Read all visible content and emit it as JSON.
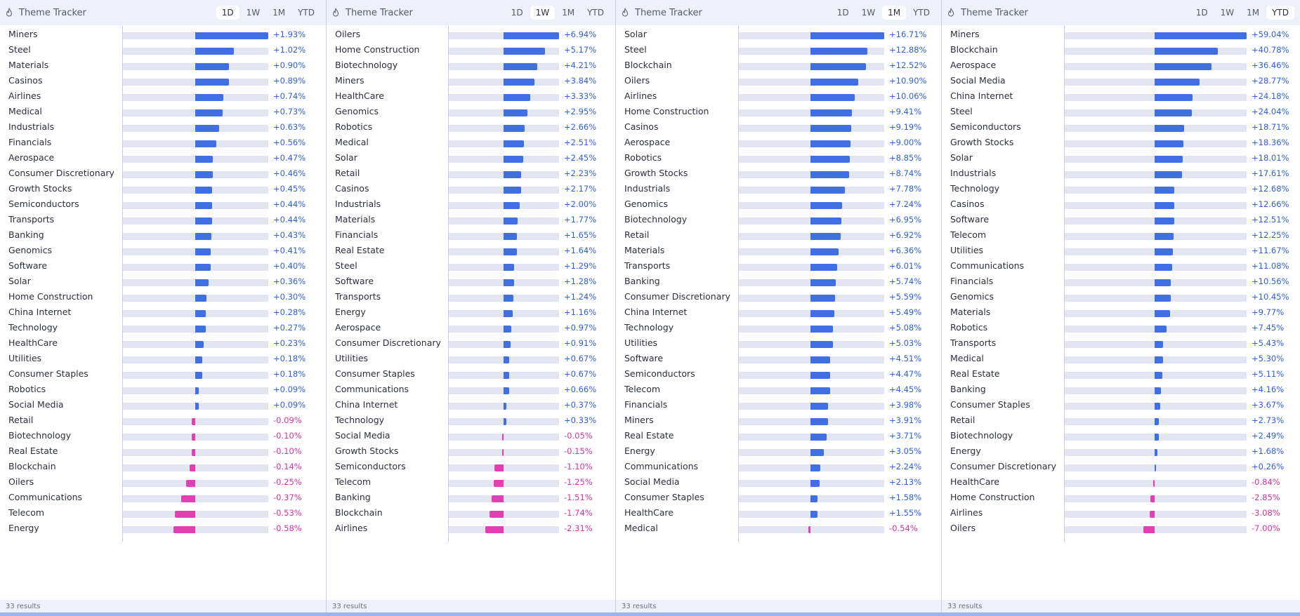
{
  "panels": [
    {
      "title": "Theme Tracker",
      "tabs": [
        "1D",
        "1W",
        "1M",
        "YTD"
      ],
      "active_tab": "1D",
      "max_abs": 1.93,
      "footer": "33 results",
      "rows": [
        {
          "label": "Miners",
          "value": 1.93,
          "text": "+1.93%"
        },
        {
          "label": "Steel",
          "value": 1.02,
          "text": "+1.02%"
        },
        {
          "label": "Materials",
          "value": 0.9,
          "text": "+0.90%"
        },
        {
          "label": "Casinos",
          "value": 0.89,
          "text": "+0.89%"
        },
        {
          "label": "Airlines",
          "value": 0.74,
          "text": "+0.74%"
        },
        {
          "label": "Medical",
          "value": 0.73,
          "text": "+0.73%"
        },
        {
          "label": "Industrials",
          "value": 0.63,
          "text": "+0.63%"
        },
        {
          "label": "Financials",
          "value": 0.56,
          "text": "+0.56%"
        },
        {
          "label": "Aerospace",
          "value": 0.47,
          "text": "+0.47%"
        },
        {
          "label": "Consumer Discretionary",
          "value": 0.46,
          "text": "+0.46%"
        },
        {
          "label": "Growth Stocks",
          "value": 0.45,
          "text": "+0.45%"
        },
        {
          "label": "Semiconductors",
          "value": 0.44,
          "text": "+0.44%"
        },
        {
          "label": "Transports",
          "value": 0.44,
          "text": "+0.44%"
        },
        {
          "label": "Banking",
          "value": 0.43,
          "text": "+0.43%"
        },
        {
          "label": "Genomics",
          "value": 0.41,
          "text": "+0.41%"
        },
        {
          "label": "Software",
          "value": 0.4,
          "text": "+0.40%"
        },
        {
          "label": "Solar",
          "value": 0.36,
          "text": "+0.36%"
        },
        {
          "label": "Home Construction",
          "value": 0.3,
          "text": "+0.30%"
        },
        {
          "label": "China Internet",
          "value": 0.28,
          "text": "+0.28%"
        },
        {
          "label": "Technology",
          "value": 0.27,
          "text": "+0.27%"
        },
        {
          "label": "HealthCare",
          "value": 0.23,
          "text": "+0.23%"
        },
        {
          "label": "Utilities",
          "value": 0.18,
          "text": "+0.18%"
        },
        {
          "label": "Consumer Staples",
          "value": 0.18,
          "text": "+0.18%"
        },
        {
          "label": "Robotics",
          "value": 0.09,
          "text": "+0.09%"
        },
        {
          "label": "Social Media",
          "value": 0.09,
          "text": "+0.09%"
        },
        {
          "label": "Retail",
          "value": -0.09,
          "text": "-0.09%"
        },
        {
          "label": "Biotechnology",
          "value": -0.1,
          "text": "-0.10%"
        },
        {
          "label": "Real Estate",
          "value": -0.1,
          "text": "-0.10%"
        },
        {
          "label": "Blockchain",
          "value": -0.14,
          "text": "-0.14%"
        },
        {
          "label": "Oilers",
          "value": -0.25,
          "text": "-0.25%"
        },
        {
          "label": "Communications",
          "value": -0.37,
          "text": "-0.37%"
        },
        {
          "label": "Telecom",
          "value": -0.53,
          "text": "-0.53%"
        },
        {
          "label": "Energy",
          "value": -0.58,
          "text": "-0.58%"
        }
      ]
    },
    {
      "title": "Theme Tracker",
      "tabs": [
        "1D",
        "1W",
        "1M",
        "YTD"
      ],
      "active_tab": "1W",
      "max_abs": 6.94,
      "footer": "33 results",
      "rows": [
        {
          "label": "Oilers",
          "value": 6.94,
          "text": "+6.94%"
        },
        {
          "label": "Home Construction",
          "value": 5.17,
          "text": "+5.17%"
        },
        {
          "label": "Biotechnology",
          "value": 4.21,
          "text": "+4.21%"
        },
        {
          "label": "Miners",
          "value": 3.84,
          "text": "+3.84%"
        },
        {
          "label": "HealthCare",
          "value": 3.33,
          "text": "+3.33%"
        },
        {
          "label": "Genomics",
          "value": 2.95,
          "text": "+2.95%"
        },
        {
          "label": "Robotics",
          "value": 2.66,
          "text": "+2.66%"
        },
        {
          "label": "Medical",
          "value": 2.51,
          "text": "+2.51%"
        },
        {
          "label": "Solar",
          "value": 2.45,
          "text": "+2.45%"
        },
        {
          "label": "Retail",
          "value": 2.23,
          "text": "+2.23%"
        },
        {
          "label": "Casinos",
          "value": 2.17,
          "text": "+2.17%"
        },
        {
          "label": "Industrials",
          "value": 2.0,
          "text": "+2.00%"
        },
        {
          "label": "Materials",
          "value": 1.77,
          "text": "+1.77%"
        },
        {
          "label": "Financials",
          "value": 1.65,
          "text": "+1.65%"
        },
        {
          "label": "Real Estate",
          "value": 1.64,
          "text": "+1.64%"
        },
        {
          "label": "Steel",
          "value": 1.29,
          "text": "+1.29%"
        },
        {
          "label": "Software",
          "value": 1.28,
          "text": "+1.28%"
        },
        {
          "label": "Transports",
          "value": 1.24,
          "text": "+1.24%"
        },
        {
          "label": "Energy",
          "value": 1.16,
          "text": "+1.16%"
        },
        {
          "label": "Aerospace",
          "value": 0.97,
          "text": "+0.97%"
        },
        {
          "label": "Consumer Discretionary",
          "value": 0.91,
          "text": "+0.91%"
        },
        {
          "label": "Utilities",
          "value": 0.67,
          "text": "+0.67%"
        },
        {
          "label": "Consumer Staples",
          "value": 0.67,
          "text": "+0.67%"
        },
        {
          "label": "Communications",
          "value": 0.66,
          "text": "+0.66%"
        },
        {
          "label": "China Internet",
          "value": 0.37,
          "text": "+0.37%"
        },
        {
          "label": "Technology",
          "value": 0.33,
          "text": "+0.33%"
        },
        {
          "label": "Social Media",
          "value": -0.05,
          "text": "-0.05%"
        },
        {
          "label": "Growth Stocks",
          "value": -0.15,
          "text": "-0.15%"
        },
        {
          "label": "Semiconductors",
          "value": -1.1,
          "text": "-1.10%"
        },
        {
          "label": "Telecom",
          "value": -1.25,
          "text": "-1.25%"
        },
        {
          "label": "Banking",
          "value": -1.51,
          "text": "-1.51%"
        },
        {
          "label": "Blockchain",
          "value": -1.74,
          "text": "-1.74%"
        },
        {
          "label": "Airlines",
          "value": -2.31,
          "text": "-2.31%"
        }
      ]
    },
    {
      "title": "Theme Tracker",
      "tabs": [
        "1D",
        "1W",
        "1M",
        "YTD"
      ],
      "active_tab": "1M",
      "max_abs": 16.71,
      "footer": "33 results",
      "rows": [
        {
          "label": "Solar",
          "value": 16.71,
          "text": "+16.71%"
        },
        {
          "label": "Steel",
          "value": 12.88,
          "text": "+12.88%"
        },
        {
          "label": "Blockchain",
          "value": 12.52,
          "text": "+12.52%"
        },
        {
          "label": "Oilers",
          "value": 10.9,
          "text": "+10.90%"
        },
        {
          "label": "Airlines",
          "value": 10.06,
          "text": "+10.06%"
        },
        {
          "label": "Home Construction",
          "value": 9.41,
          "text": "+9.41%"
        },
        {
          "label": "Casinos",
          "value": 9.19,
          "text": "+9.19%"
        },
        {
          "label": "Aerospace",
          "value": 9.0,
          "text": "+9.00%"
        },
        {
          "label": "Robotics",
          "value": 8.85,
          "text": "+8.85%"
        },
        {
          "label": "Growth Stocks",
          "value": 8.74,
          "text": "+8.74%"
        },
        {
          "label": "Industrials",
          "value": 7.78,
          "text": "+7.78%"
        },
        {
          "label": "Genomics",
          "value": 7.24,
          "text": "+7.24%"
        },
        {
          "label": "Biotechnology",
          "value": 6.95,
          "text": "+6.95%"
        },
        {
          "label": "Retail",
          "value": 6.92,
          "text": "+6.92%"
        },
        {
          "label": "Materials",
          "value": 6.36,
          "text": "+6.36%"
        },
        {
          "label": "Transports",
          "value": 6.01,
          "text": "+6.01%"
        },
        {
          "label": "Banking",
          "value": 5.74,
          "text": "+5.74%"
        },
        {
          "label": "Consumer Discretionary",
          "value": 5.59,
          "text": "+5.59%"
        },
        {
          "label": "China Internet",
          "value": 5.49,
          "text": "+5.49%"
        },
        {
          "label": "Technology",
          "value": 5.08,
          "text": "+5.08%"
        },
        {
          "label": "Utilities",
          "value": 5.03,
          "text": "+5.03%"
        },
        {
          "label": "Software",
          "value": 4.51,
          "text": "+4.51%"
        },
        {
          "label": "Semiconductors",
          "value": 4.47,
          "text": "+4.47%"
        },
        {
          "label": "Telecom",
          "value": 4.45,
          "text": "+4.45%"
        },
        {
          "label": "Financials",
          "value": 3.98,
          "text": "+3.98%"
        },
        {
          "label": "Miners",
          "value": 3.91,
          "text": "+3.91%"
        },
        {
          "label": "Real Estate",
          "value": 3.71,
          "text": "+3.71%"
        },
        {
          "label": "Energy",
          "value": 3.05,
          "text": "+3.05%"
        },
        {
          "label": "Communications",
          "value": 2.24,
          "text": "+2.24%"
        },
        {
          "label": "Social Media",
          "value": 2.13,
          "text": "+2.13%"
        },
        {
          "label": "Consumer Staples",
          "value": 1.58,
          "text": "+1.58%"
        },
        {
          "label": "HealthCare",
          "value": 1.55,
          "text": "+1.55%"
        },
        {
          "label": "Medical",
          "value": -0.54,
          "text": "-0.54%"
        }
      ]
    },
    {
      "title": "Theme Tracker",
      "tabs": [
        "1D",
        "1W",
        "1M",
        "YTD"
      ],
      "active_tab": "YTD",
      "max_abs": 59.04,
      "footer": "33 results",
      "rows": [
        {
          "label": "Miners",
          "value": 59.04,
          "text": "+59.04%"
        },
        {
          "label": "Blockchain",
          "value": 40.78,
          "text": "+40.78%"
        },
        {
          "label": "Aerospace",
          "value": 36.46,
          "text": "+36.46%"
        },
        {
          "label": "Social Media",
          "value": 28.77,
          "text": "+28.77%"
        },
        {
          "label": "China Internet",
          "value": 24.18,
          "text": "+24.18%"
        },
        {
          "label": "Steel",
          "value": 24.04,
          "text": "+24.04%"
        },
        {
          "label": "Semiconductors",
          "value": 18.71,
          "text": "+18.71%"
        },
        {
          "label": "Growth Stocks",
          "value": 18.36,
          "text": "+18.36%"
        },
        {
          "label": "Solar",
          "value": 18.01,
          "text": "+18.01%"
        },
        {
          "label": "Industrials",
          "value": 17.61,
          "text": "+17.61%"
        },
        {
          "label": "Technology",
          "value": 12.68,
          "text": "+12.68%"
        },
        {
          "label": "Casinos",
          "value": 12.66,
          "text": "+12.66%"
        },
        {
          "label": "Software",
          "value": 12.51,
          "text": "+12.51%"
        },
        {
          "label": "Telecom",
          "value": 12.25,
          "text": "+12.25%"
        },
        {
          "label": "Utilities",
          "value": 11.67,
          "text": "+11.67%"
        },
        {
          "label": "Communications",
          "value": 11.08,
          "text": "+11.08%"
        },
        {
          "label": "Financials",
          "value": 10.56,
          "text": "+10.56%"
        },
        {
          "label": "Genomics",
          "value": 10.45,
          "text": "+10.45%"
        },
        {
          "label": "Materials",
          "value": 9.77,
          "text": "+9.77%"
        },
        {
          "label": "Robotics",
          "value": 7.45,
          "text": "+7.45%"
        },
        {
          "label": "Transports",
          "value": 5.43,
          "text": "+5.43%"
        },
        {
          "label": "Medical",
          "value": 5.3,
          "text": "+5.30%"
        },
        {
          "label": "Real Estate",
          "value": 5.11,
          "text": "+5.11%"
        },
        {
          "label": "Banking",
          "value": 4.16,
          "text": "+4.16%"
        },
        {
          "label": "Consumer Staples",
          "value": 3.67,
          "text": "+3.67%"
        },
        {
          "label": "Retail",
          "value": 2.73,
          "text": "+2.73%"
        },
        {
          "label": "Biotechnology",
          "value": 2.49,
          "text": "+2.49%"
        },
        {
          "label": "Energy",
          "value": 1.68,
          "text": "+1.68%"
        },
        {
          "label": "Consumer Discretionary",
          "value": 0.26,
          "text": "+0.26%"
        },
        {
          "label": "HealthCare",
          "value": -0.84,
          "text": "-0.84%"
        },
        {
          "label": "Home Construction",
          "value": -2.85,
          "text": "-2.85%"
        },
        {
          "label": "Airlines",
          "value": -3.08,
          "text": "-3.08%"
        },
        {
          "label": "Oilers",
          "value": -7.0,
          "text": "-7.00%"
        }
      ]
    }
  ],
  "colors": {
    "positive_bar": "#3f6fe3",
    "negative_bar": "#e23fb3",
    "positive_text": "#2f5fd8",
    "negative_text": "#d2359f",
    "track": "#e3e5f1",
    "header_bg": "#eef0fa"
  },
  "icons": {
    "title_icon": "flame-icon"
  }
}
